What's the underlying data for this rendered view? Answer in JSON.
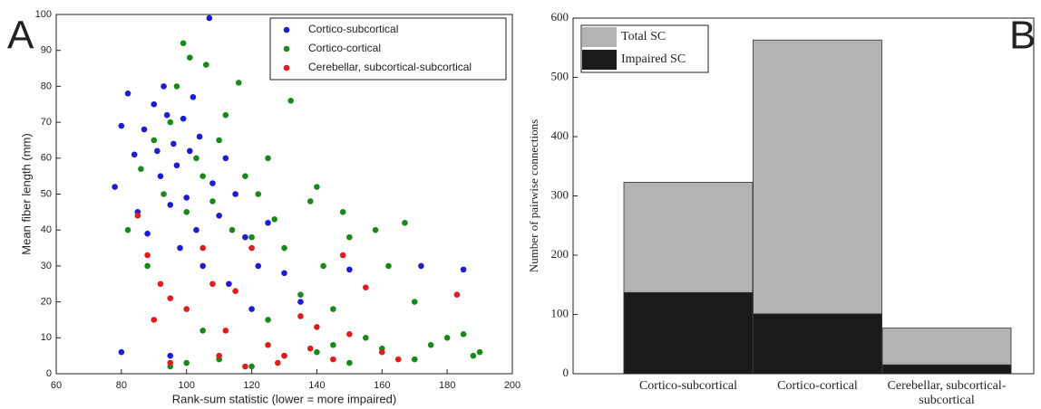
{
  "chart_data": [
    {
      "type": "scatter",
      "panel_label": "A",
      "x_label": "Rank-sum statistic (lower = more impaired)",
      "y_label": "Mean fiber length (mm)",
      "xlim": [
        60,
        200
      ],
      "xticks": [
        60,
        80,
        100,
        120,
        140,
        160,
        180,
        200
      ],
      "ylim": [
        0,
        100
      ],
      "yticks": [
        0,
        10,
        20,
        30,
        40,
        50,
        60,
        70,
        80,
        90,
        100
      ],
      "legend": "upper right",
      "series": [
        {
          "name": "Cortico-subcortical",
          "color": "#1c1cd6",
          "x": [
            78,
            80,
            82,
            84,
            85,
            87,
            88,
            90,
            91,
            92,
            93,
            94,
            95,
            96,
            97,
            98,
            99,
            100,
            101,
            102,
            103,
            104,
            105,
            107,
            108,
            110,
            112,
            113,
            115,
            118,
            120,
            122,
            125,
            130,
            135,
            150,
            172,
            185,
            80,
            95
          ],
          "values": [
            52,
            69,
            78,
            61,
            45,
            68,
            39,
            75,
            62,
            55,
            80,
            72,
            47,
            64,
            58,
            35,
            71,
            49,
            62,
            77,
            40,
            66,
            30,
            99,
            53,
            44,
            60,
            25,
            50,
            38,
            18,
            30,
            42,
            28,
            20,
            29,
            30,
            29,
            6,
            5
          ]
        },
        {
          "name": "Cortico-cortical",
          "color": "#198a19",
          "x": [
            82,
            86,
            88,
            90,
            93,
            95,
            97,
            99,
            100,
            101,
            103,
            105,
            106,
            108,
            110,
            112,
            114,
            116,
            118,
            120,
            122,
            125,
            127,
            130,
            132,
            135,
            138,
            140,
            142,
            145,
            148,
            150,
            155,
            158,
            162,
            167,
            170,
            175,
            180,
            185,
            188,
            190,
            100,
            110,
            120,
            130,
            140,
            150,
            160,
            95,
            105,
            125,
            145,
            170
          ],
          "values": [
            40,
            57,
            30,
            65,
            50,
            70,
            80,
            92,
            45,
            88,
            60,
            55,
            86,
            48,
            65,
            72,
            40,
            81,
            55,
            38,
            50,
            60,
            43,
            35,
            76,
            22,
            48,
            52,
            30,
            18,
            45,
            38,
            10,
            40,
            30,
            42,
            20,
            8,
            10,
            11,
            5,
            6,
            3,
            4,
            2,
            5,
            6,
            3,
            7,
            2,
            12,
            15,
            8,
            4
          ]
        },
        {
          "name": "Cerebellar, subcortical-subcortical",
          "color": "#e01c1c",
          "x": [
            85,
            88,
            90,
            92,
            95,
            100,
            105,
            108,
            110,
            115,
            118,
            120,
            125,
            128,
            130,
            135,
            138,
            140,
            145,
            148,
            150,
            155,
            160,
            165,
            183,
            95,
            112
          ],
          "values": [
            44,
            33,
            15,
            25,
            21,
            18,
            35,
            25,
            5,
            23,
            2,
            35,
            8,
            3,
            5,
            16,
            7,
            13,
            4,
            33,
            11,
            24,
            6,
            4,
            22,
            3,
            12
          ]
        }
      ]
    },
    {
      "type": "bar",
      "panel_label": "B",
      "barmode": "overlay",
      "y_label": "Number of pairwise connections",
      "categories": [
        "Cortico-subcortical",
        "Cortico-cortical",
        "Cerebellar, subcortical-subcortical"
      ],
      "ylim": [
        0,
        600
      ],
      "yticks": [
        0,
        100,
        200,
        300,
        400,
        500,
        600
      ],
      "legend": "upper left",
      "series": [
        {
          "name": "Total SC",
          "color": "#b3b3b3",
          "values": [
            323,
            563,
            77
          ]
        },
        {
          "name": "Impaired SC",
          "color": "#1a1a1a",
          "values": [
            137,
            101,
            15
          ]
        }
      ]
    }
  ]
}
